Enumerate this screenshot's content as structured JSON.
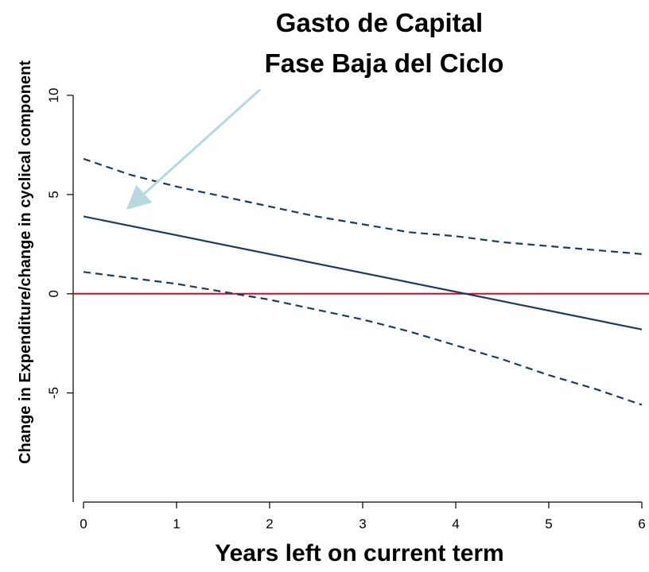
{
  "chart_data": {
    "type": "line",
    "title": [
      "Gasto de Capital",
      "Fase Baja del Ciclo"
    ],
    "xlabel": "Years left on current term",
    "ylabel": "Change in Expenditure/change in cyclical component",
    "xlim": [
      0,
      6
    ],
    "ylim": [
      -10.5,
      10
    ],
    "xticks": [
      0,
      1,
      2,
      3,
      4,
      5,
      6
    ],
    "yticks": [
      -5,
      0,
      5,
      10
    ],
    "xtick_labels": [
      "0",
      "1",
      "2",
      "3",
      "4",
      "5",
      "6"
    ],
    "ytick_labels": [
      "-5",
      "0",
      "5",
      "10"
    ],
    "grid": false,
    "reference_line": {
      "y": 0,
      "color": "#c8102e"
    },
    "series": [
      {
        "style": "solid",
        "color": "#1f3b5c",
        "x": [
          0,
          6
        ],
        "y": [
          3.9,
          -1.8
        ]
      },
      {
        "style": "dashed",
        "color": "#1f3b5c",
        "x": [
          0,
          0.5,
          1,
          1.5,
          2,
          2.5,
          3,
          3.5,
          4,
          4.5,
          5,
          5.5,
          6
        ],
        "y": [
          6.8,
          6.0,
          5.4,
          4.9,
          4.4,
          3.9,
          3.5,
          3.1,
          2.9,
          2.6,
          2.4,
          2.2,
          2.0
        ]
      },
      {
        "style": "dashed",
        "color": "#1f3b5c",
        "x": [
          0,
          0.5,
          1,
          1.5,
          2,
          2.5,
          3,
          3.5,
          4,
          4.5,
          5,
          5.5,
          6
        ],
        "y": [
          1.1,
          0.8,
          0.5,
          0.1,
          -0.3,
          -0.8,
          -1.3,
          -1.9,
          -2.6,
          -3.3,
          -4.1,
          -4.8,
          -5.6
        ]
      }
    ],
    "annotation": {
      "type": "arrow",
      "color": "#b6d9df",
      "from": [
        1.9,
        10.3
      ],
      "to": [
        0.5,
        4.4
      ]
    }
  }
}
